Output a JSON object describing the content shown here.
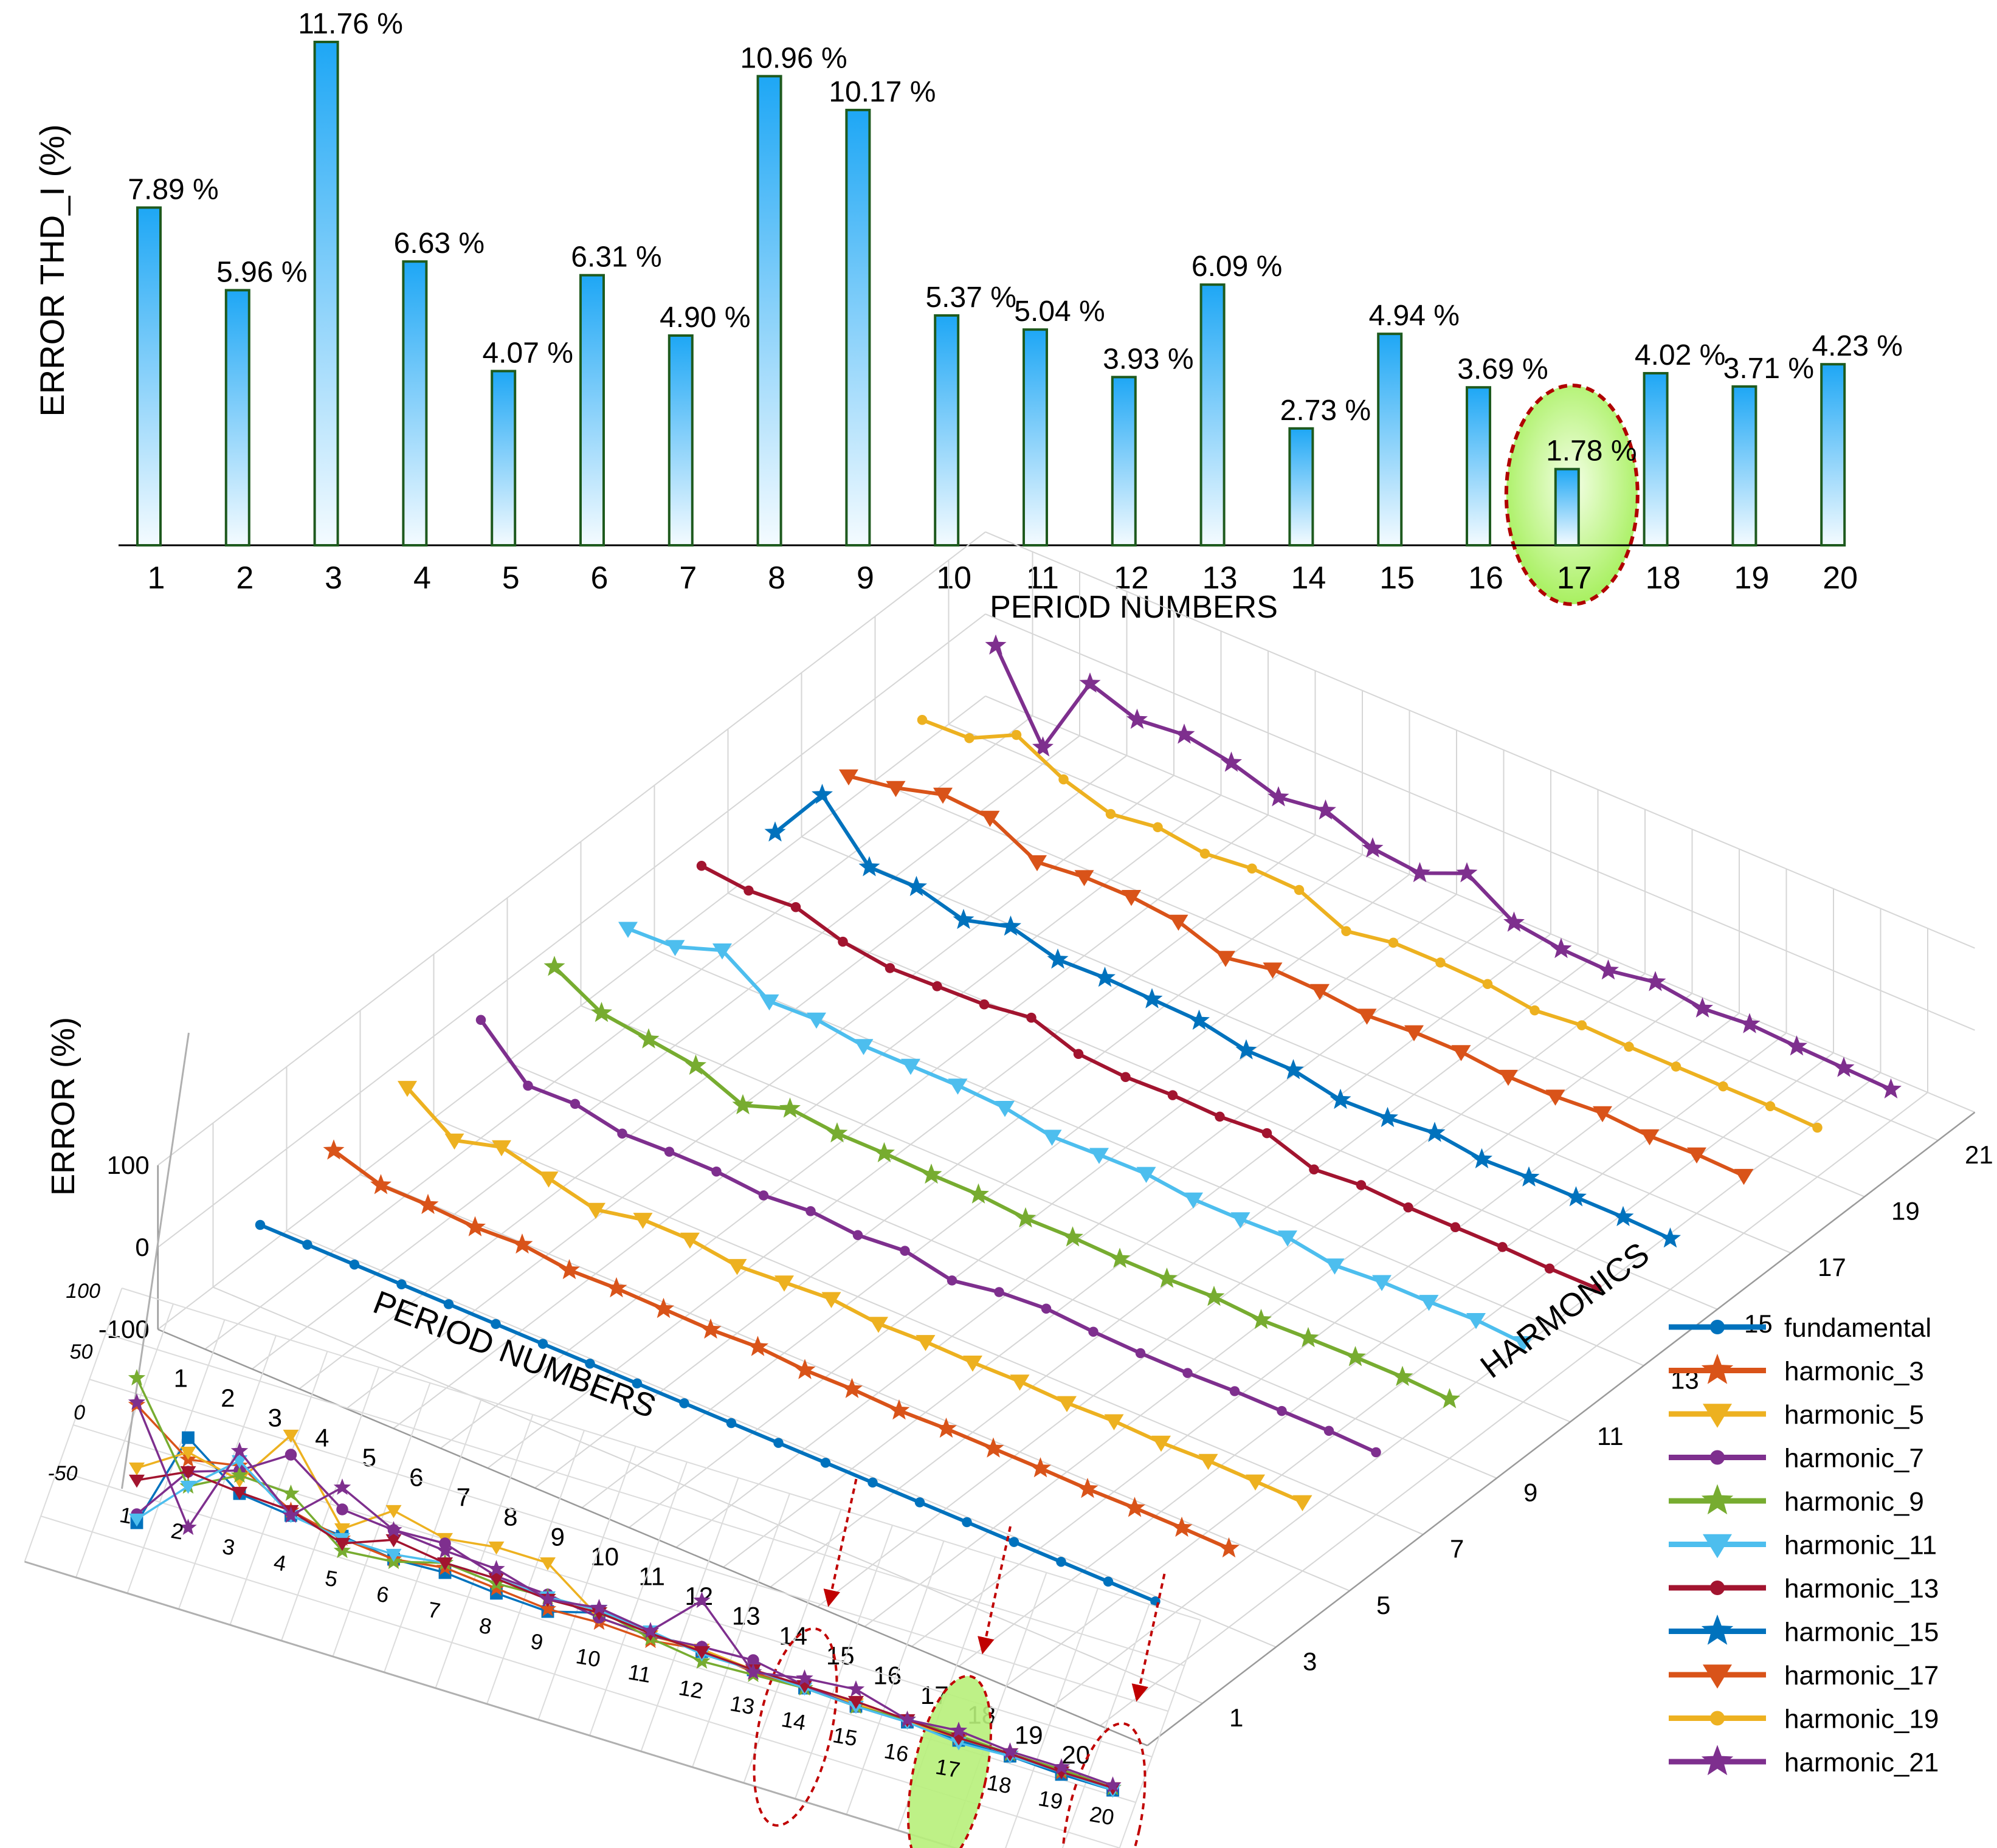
{
  "chart_data": [
    {
      "type": "bar",
      "ylabel": "ERROR THD_I (%)",
      "xlabel": "PERIOD NUMBERS",
      "categories": [
        "1",
        "2",
        "3",
        "4",
        "5",
        "6",
        "7",
        "8",
        "9",
        "10",
        "11",
        "12",
        "13",
        "14",
        "15",
        "16",
        "17",
        "18",
        "19",
        "20"
      ],
      "values": [
        7.89,
        5.96,
        11.76,
        6.63,
        4.07,
        6.31,
        4.9,
        10.96,
        10.17,
        5.37,
        5.04,
        3.93,
        6.09,
        2.73,
        4.94,
        3.69,
        1.78,
        4.02,
        3.71,
        4.23
      ],
      "value_labels": [
        "7.89 %",
        "5.96 %",
        "11.76 %",
        "6.63 %",
        "4.07 %",
        "6.31 %",
        "4.90 %",
        "10.96 %",
        "10.17 %",
        "5.37 %",
        "5.04 %",
        "3.93 %",
        "6.09 %",
        "2.73 %",
        "4.94 %",
        "3.69 %",
        "1.78 %",
        "4.02 %",
        "3.71 %",
        "4.23 %"
      ],
      "highlighted_category": "17",
      "bar_color": "#1ea7f5",
      "highlight_color": "#a8f060"
    },
    {
      "type": "line",
      "view": "3d",
      "zlabel": "ERROR (%)",
      "xlabel": "PERIOD NUMBERS",
      "ylabel": "HARMONICS",
      "zticks": [
        "100",
        "0",
        "-100"
      ],
      "zlim": [
        -100,
        100
      ],
      "x_ticks": [
        "1",
        "2",
        "3",
        "4",
        "5",
        "6",
        "7",
        "8",
        "9",
        "10",
        "11",
        "12",
        "13",
        "14",
        "15",
        "16",
        "17",
        "18",
        "19",
        "20"
      ],
      "y_ticks": [
        "1",
        "3",
        "5",
        "7",
        "9",
        "11",
        "13",
        "15",
        "17",
        "19",
        "21"
      ],
      "grid": true,
      "legend_position": "bottom-right",
      "series": [
        {
          "name": "fundamental",
          "harmonic": 1,
          "marker": "circle",
          "color": "#0072bd",
          "values": [
            0,
            0,
            0,
            0,
            0,
            0,
            0,
            0,
            0,
            0,
            0,
            0,
            0,
            0,
            0,
            0,
            0,
            0,
            0,
            0
          ]
        },
        {
          "name": "harmonic_3",
          "harmonic": 3,
          "marker": "star",
          "color": "#d95319",
          "values": [
            22,
            4,
            4,
            1,
            4,
            -3,
            -1,
            -2,
            -3,
            0,
            -4,
            -3,
            -5,
            -3,
            -3,
            -3,
            -4,
            -3,
            -3,
            -4
          ]
        },
        {
          "name": "harmonic_5",
          "harmonic": 5,
          "marker": "triangle-down",
          "color": "#edb120",
          "values": [
            30,
            -10,
            6,
            -8,
            -22,
            -10,
            -10,
            -18,
            -14,
            -10,
            -16,
            -14,
            -15,
            -14,
            -16,
            -14,
            -16,
            -14,
            -15,
            -16
          ]
        },
        {
          "name": "harmonic_7",
          "harmonic": 7,
          "marker": "circle",
          "color": "#7e2f8e",
          "values": [
            44,
            -12,
            -10,
            -22,
            -20,
            -20,
            -25,
            -20,
            -25,
            -20,
            -32,
            -22,
            -18,
            -22,
            -24,
            -24,
            -22,
            -22,
            -22,
            -24
          ]
        },
        {
          "name": "harmonic_9",
          "harmonic": 9,
          "marker": "star",
          "color": "#77ac30",
          "values": [
            40,
            8,
            0,
            -8,
            -32,
            -12,
            -18,
            -18,
            -20,
            -20,
            -25,
            -24,
            -26,
            -26,
            -24,
            -28,
            -26,
            -25,
            -25,
            -28
          ]
        },
        {
          "name": "harmonic_11",
          "harmonic": 11,
          "marker": "triangle-down",
          "color": "#4dbeee",
          "values": [
            18,
            20,
            40,
            2,
            4,
            -4,
            -4,
            -4,
            -7,
            -18,
            -16,
            -15,
            -22,
            -22,
            -20,
            -30,
            -26,
            -26,
            -24,
            -28
          ]
        },
        {
          "name": "harmonic_13",
          "harmonic": 13,
          "marker": "circle",
          "color": "#a2142f",
          "values": [
            26,
            20,
            24,
            6,
            -2,
            0,
            2,
            10,
            -10,
            -14,
            -12,
            -14,
            -10,
            -30,
            -25,
            -28,
            -28,
            -28,
            -30,
            -30
          ]
        },
        {
          "name": "harmonic_15",
          "harmonic": 15,
          "marker": "star",
          "color": "#0072bd",
          "values": [
            -2,
            68,
            4,
            4,
            -12,
            4,
            -12,
            -10,
            -12,
            -14,
            -26,
            -26,
            -38,
            -36,
            -30,
            -38,
            -36,
            -36,
            -36,
            -38
          ]
        },
        {
          "name": "harmonic_17",
          "harmonic": 17,
          "marker": "triangle-down",
          "color": "#d95319",
          "values": [
            -2,
            8,
            24,
            20,
            -10,
            -4,
            -4,
            -10,
            -30,
            -20,
            -22,
            -28,
            -24,
            -24,
            -30,
            -30,
            -26,
            -30,
            -28,
            -30
          ]
        },
        {
          "name": "harmonic_19",
          "harmonic": 19,
          "marker": "circle",
          "color": "#edb120",
          "values": [
            -2,
            0,
            28,
            -2,
            -20,
            -12,
            -20,
            -14,
            -16,
            -42,
            -32,
            -32,
            -34,
            -42,
            -36,
            -38,
            -38,
            -38,
            -38,
            -40
          ]
        },
        {
          "name": "harmonic_21",
          "harmonic": 21,
          "marker": "star",
          "color": "#7e2f8e",
          "values": [
            20,
            -80,
            22,
            2,
            8,
            -2,
            -20,
            -12,
            -34,
            -40,
            -16,
            -52,
            -60,
            -62,
            -52,
            -60,
            -55,
            -58,
            -60,
            -62
          ]
        }
      ]
    },
    {
      "type": "line",
      "view": "inset-3d",
      "z_ticks": [
        "100",
        "50",
        "0",
        "-50"
      ],
      "x_ticks": [
        "1",
        "2",
        "3",
        "4",
        "5",
        "6",
        "7",
        "8",
        "9",
        "10",
        "11",
        "12",
        "13",
        "14",
        "15",
        "16",
        "17",
        "18",
        "19",
        "20"
      ],
      "highlighted_periods": [
        "14",
        "17",
        "20"
      ],
      "series": [
        {
          "color": "#0072bd",
          "values": [
            -55,
            28,
            -5,
            -10,
            -14,
            -20,
            -18,
            -22,
            -24,
            -12,
            -16,
            -18,
            -20,
            -22,
            -24,
            -24,
            -26,
            -26,
            -28,
            -28
          ]
        },
        {
          "color": "#d95319",
          "values": [
            42,
            10,
            18,
            -6,
            -16,
            -20,
            -14,
            -18,
            -22,
            -20,
            -22,
            -16,
            -22,
            -22,
            -24,
            -22,
            -24,
            -24,
            -26,
            -26
          ]
        },
        {
          "color": "#edb120",
          "values": [
            -10,
            16,
            6,
            56,
            -8,
            20,
            10,
            16,
            16,
            -16,
            -18,
            -16,
            -20,
            -20,
            -22,
            -24,
            -24,
            -24,
            -26,
            -26
          ]
        },
        {
          "color": "#7e2f8e",
          "values": [
            -48,
            0,
            14,
            40,
            8,
            4,
            6,
            -8,
            -10,
            -16,
            -18,
            -14,
            -12,
            -20,
            -24,
            -22,
            -22,
            -24,
            -24,
            -26
          ]
        },
        {
          "color": "#77ac30",
          "values": [
            64,
            -12,
            10,
            8,
            -26,
            -22,
            -10,
            -14,
            -12,
            -10,
            -20,
            -26,
            -24,
            -22,
            -24,
            -22,
            -22,
            -24,
            -24,
            -26
          ]
        },
        {
          "color": "#4dbeee",
          "values": [
            -52,
            -12,
            22,
            -10,
            -16,
            -16,
            -10,
            -10,
            -12,
            -10,
            -14,
            -20,
            -20,
            -22,
            -24,
            -24,
            -28,
            -26,
            -26,
            -28
          ]
        },
        {
          "color": "#a2142f",
          "values": [
            -20,
            0,
            -4,
            -6,
            -20,
            -4,
            -10,
            -10,
            -14,
            -12,
            -16,
            -18,
            -20,
            -20,
            -20,
            -22,
            -24,
            -24,
            -26,
            -26
          ]
        },
        {
          "color": "#7e2f8e",
          "values": [
            44,
            -46,
            30,
            -10,
            26,
            4,
            0,
            -2,
            -14,
            -8,
            -14,
            24,
            -22,
            -14,
            -10,
            -22,
            -18,
            -22,
            -22,
            -24
          ]
        }
      ]
    }
  ],
  "legend": [
    {
      "label": "fundamental",
      "color": "#0072bd",
      "marker": "circle"
    },
    {
      "label": "harmonic_3",
      "color": "#d95319",
      "marker": "star"
    },
    {
      "label": "harmonic_5",
      "color": "#edb120",
      "marker": "triangle-down"
    },
    {
      "label": "harmonic_7",
      "color": "#7e2f8e",
      "marker": "circle"
    },
    {
      "label": "harmonic_9",
      "color": "#77ac30",
      "marker": "star"
    },
    {
      "label": "harmonic_11",
      "color": "#4dbeee",
      "marker": "triangle-down"
    },
    {
      "label": "harmonic_13",
      "color": "#a2142f",
      "marker": "circle"
    },
    {
      "label": "harmonic_15",
      "color": "#0072bd",
      "marker": "star"
    },
    {
      "label": "harmonic_17",
      "color": "#d95319",
      "marker": "triangle-down"
    },
    {
      "label": "harmonic_19",
      "color": "#edb120",
      "marker": "circle"
    },
    {
      "label": "harmonic_21",
      "color": "#7e2f8e",
      "marker": "star"
    }
  ]
}
